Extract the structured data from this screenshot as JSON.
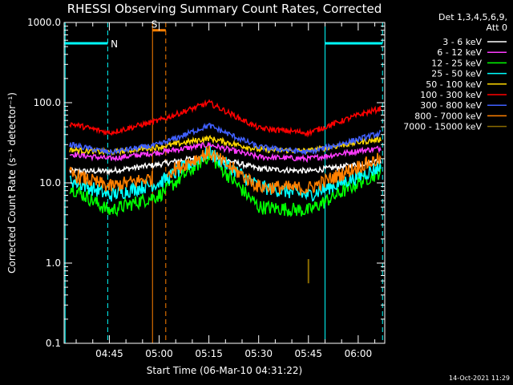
{
  "chart_data": {
    "type": "line",
    "title": "RHESSI Observing Summary Count Rates, Corrected",
    "xlabel": "Start Time (06-Mar-10 04:31:22)",
    "ylabel": "Corrected Count Rate (s⁻¹ detector⁻¹)",
    "y_scale": "log",
    "ylim": [
      0.1,
      1000.0
    ],
    "xlim": [
      "04:31:22",
      "06:08:00"
    ],
    "x_ticks": [
      "04:45",
      "05:00",
      "05:15",
      "05:30",
      "05:45",
      "06:00"
    ],
    "y_ticks": [
      "0.1",
      "1.0",
      "10.0",
      "100.0",
      "1000.0"
    ],
    "legend_header": [
      "Det 1,3,4,5,6,9,",
      "Att 0"
    ],
    "legend_position": "right",
    "series": [
      {
        "name": "3 - 6 keV",
        "color": "#ffffff",
        "x": [
          "04:33",
          "04:45",
          "05:00",
          "05:15",
          "05:30",
          "05:45",
          "06:00",
          "06:07"
        ],
        "values": [
          14,
          14,
          17,
          22,
          15,
          14,
          17,
          19
        ]
      },
      {
        "name": "6 - 12 keV",
        "color": "#ff3bff",
        "x": [
          "04:33",
          "04:45",
          "05:00",
          "05:15",
          "05:30",
          "05:45",
          "06:00",
          "06:07"
        ],
        "values": [
          23,
          20,
          24,
          30,
          21,
          20,
          25,
          27
        ]
      },
      {
        "name": "12 - 25 keV",
        "color": "#00ff00",
        "x": [
          "04:33",
          "04:45",
          "05:00",
          "05:15",
          "05:30",
          "05:45",
          "06:00",
          "06:07"
        ],
        "values": [
          9,
          4.5,
          7,
          22,
          5,
          4.5,
          10,
          14
        ]
      },
      {
        "name": "25 - 50 keV",
        "color": "#00ffff",
        "x": [
          "04:33",
          "04:45",
          "05:00",
          "05:15",
          "05:30",
          "05:45",
          "06:00",
          "06:07"
        ],
        "values": [
          11,
          7,
          10,
          24,
          9,
          7,
          12,
          16
        ]
      },
      {
        "name": "50 - 100 keV",
        "color": "#ffd700",
        "x": [
          "04:33",
          "04:45",
          "05:00",
          "05:15",
          "05:30",
          "05:45",
          "06:00",
          "06:07"
        ],
        "values": [
          26,
          24,
          28,
          36,
          26,
          25,
          32,
          35
        ]
      },
      {
        "name": "100 - 300 keV",
        "color": "#ff0000",
        "x": [
          "04:33",
          "04:45",
          "05:00",
          "05:15",
          "05:30",
          "05:45",
          "06:00",
          "06:07"
        ],
        "values": [
          55,
          42,
          60,
          100,
          48,
          42,
          70,
          85
        ]
      },
      {
        "name": "300 - 800 keV",
        "color": "#4060ff",
        "x": [
          "04:33",
          "04:45",
          "05:00",
          "05:15",
          "05:30",
          "05:45",
          "06:00",
          "06:07"
        ],
        "values": [
          30,
          24,
          30,
          52,
          28,
          24,
          35,
          42
        ]
      },
      {
        "name": "800 - 7000 keV",
        "color": "#ff8000",
        "x": [
          "04:33",
          "04:45",
          "05:00",
          "05:15",
          "05:30",
          "05:45",
          "06:00",
          "06:07"
        ],
        "values": [
          13,
          9,
          12,
          24,
          9,
          8.5,
          16,
          20
        ]
      },
      {
        "name": "7000 - 15000 keV",
        "color": "#8b6b00",
        "x": [
          "05:45"
        ],
        "values": [
          0.8
        ]
      }
    ],
    "annotations": [
      {
        "label": "N",
        "color": "#00ffff"
      },
      {
        "label": "S",
        "color": "#ff8000"
      }
    ],
    "grid": false
  },
  "timestamp": "14-Oct-2021 11:29"
}
